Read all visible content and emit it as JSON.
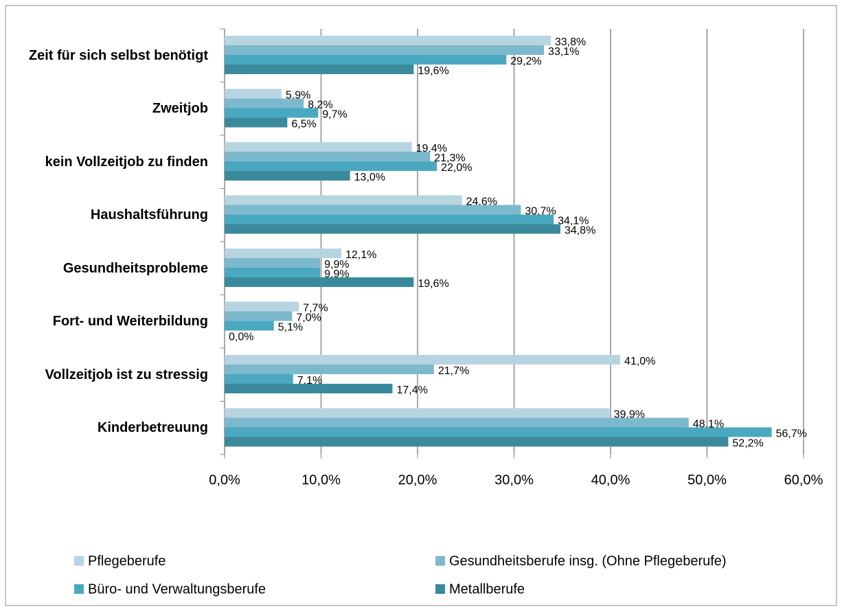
{
  "chart_data": {
    "type": "bar",
    "orientation": "horizontal",
    "categories": [
      "Zeit für sich selbst benötigt",
      "Zweitjob",
      "kein Vollzeitjob zu finden",
      "Haushaltsführung",
      "Gesundheitsprobleme",
      "Fort- und Weiterbildung",
      "Vollzeitjob ist zu stressig",
      "Kinderbetreuung"
    ],
    "series": [
      {
        "name": "Pflegeberufe",
        "color": "#b7d4e1",
        "values": [
          33.8,
          5.9,
          19.4,
          24.6,
          12.1,
          7.7,
          41.0,
          39.9
        ],
        "value_labels": [
          "33,8%",
          "5,9%",
          "19,4%",
          "24,6%",
          "12,1%",
          "7,7%",
          "41,0%",
          "39,9%"
        ]
      },
      {
        "name": "Gesundheitsberufe insg. (Ohne Pflegeberufe)",
        "color": "#7db9cd",
        "values": [
          33.1,
          8.2,
          21.3,
          30.7,
          9.9,
          7.0,
          21.7,
          48.1
        ],
        "value_labels": [
          "33,1%",
          "8,2%",
          "21,3%",
          "30,7%",
          "9,9%",
          "7,0%",
          "21,7%",
          "48,1%"
        ]
      },
      {
        "name": "Büro- und Verwaltungsberufe",
        "color": "#4aa8c0",
        "values": [
          29.2,
          9.7,
          22.0,
          34.1,
          9.9,
          5.1,
          7.1,
          56.7
        ],
        "value_labels": [
          "29,2%",
          "9,7%",
          "22,0%",
          "34,1%",
          "9,9%",
          "5,1%",
          "7,1%",
          "56,7%"
        ]
      },
      {
        "name": "Metallberufe",
        "color": "#3a8a9c",
        "values": [
          19.6,
          6.5,
          13.0,
          34.8,
          19.6,
          0.0,
          17.4,
          52.2
        ],
        "value_labels": [
          "19,6%",
          "6,5%",
          "13,0%",
          "34,8%",
          "19,6%",
          "0,0%",
          "17,4%",
          "52,2%"
        ]
      }
    ],
    "xlim": [
      0,
      60
    ],
    "xticks": [
      {
        "value": 0,
        "label": "0,0%"
      },
      {
        "value": 10,
        "label": "10,0%"
      },
      {
        "value": 20,
        "label": "20,0%"
      },
      {
        "value": 30,
        "label": "30,0%"
      },
      {
        "value": 40,
        "label": "40,0%"
      },
      {
        "value": 50,
        "label": "50,0%"
      },
      {
        "value": 60,
        "label": "60,0%"
      }
    ],
    "grid": true,
    "legend": "bottom"
  }
}
